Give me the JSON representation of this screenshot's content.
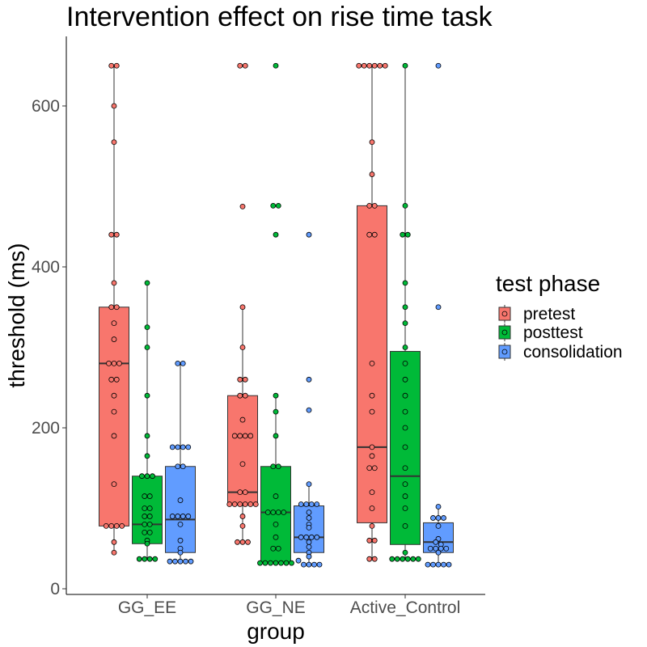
{
  "chart_data": {
    "type": "boxplot",
    "title": "Intervention effect on rise time task",
    "xlabel": "group",
    "ylabel": "threshold (ms)",
    "ylim": [
      -5,
      685
    ],
    "yticks": [
      0,
      200,
      400,
      600
    ],
    "categories": [
      "GG_EE",
      "GG_NE",
      "Active_Control"
    ],
    "grid": false,
    "legend": {
      "title": "test phase",
      "position": "right",
      "entries": [
        "pretest",
        "posttest",
        "consolidation"
      ]
    },
    "series": [
      {
        "name": "pretest",
        "color": "#F8766D",
        "boxes": [
          {
            "q1": 78,
            "median": 280,
            "q3": 350,
            "whisker_low": 45,
            "whisker_high": 650,
            "points": [
              650,
              650,
              600,
              555,
              440,
              440,
              380,
              350,
              350,
              330,
              310,
              280,
              280,
              280,
              260,
              260,
              240,
              220,
              190,
              130,
              78,
              78,
              78,
              78,
              58,
              45
            ]
          },
          {
            "q1": 105,
            "median": 120,
            "q3": 240,
            "whisker_low": 58,
            "whisker_high": 350,
            "points": [
              650,
              650,
              475,
              350,
              300,
              260,
              260,
              240,
              240,
              210,
              190,
              190,
              190,
              190,
              155,
              120,
              120,
              105,
              105,
              105,
              105,
              105,
              105,
              90,
              78,
              58,
              58,
              58
            ]
          },
          {
            "q1": 82,
            "median": 176,
            "q3": 476,
            "whisker_low": 37,
            "whisker_high": 650,
            "points": [
              650,
              650,
              650,
              650,
              650,
              650,
              555,
              515,
              476,
              476,
              440,
              440,
              280,
              240,
              220,
              176,
              165,
              150,
              150,
              120,
              100,
              78,
              60,
              60,
              37,
              37
            ]
          }
        ]
      },
      {
        "name": "posttest",
        "color": "#00BA38",
        "boxes": [
          {
            "q1": 56,
            "median": 80,
            "q3": 140,
            "whisker_low": 37,
            "whisker_high": 380,
            "points": [
              380,
              325,
              300,
              240,
              190,
              165,
              140,
              140,
              140,
              115,
              115,
              100,
              100,
              90,
              90,
              80,
              80,
              70,
              70,
              60,
              56,
              37,
              37,
              37,
              37
            ]
          },
          {
            "q1": 32,
            "median": 95,
            "q3": 152,
            "whisker_low": 32,
            "whisker_high": 240,
            "points": [
              650,
              476,
              476,
              440,
              240,
              220,
              190,
              152,
              152,
              115,
              95,
              95,
              95,
              95,
              80,
              64,
              50,
              50,
              32,
              32,
              32,
              32,
              32,
              32,
              32
            ]
          },
          {
            "q1": 55,
            "median": 140,
            "q3": 295,
            "whisker_low": 37,
            "whisker_high": 650,
            "points": [
              650,
              476,
              440,
              440,
              380,
              350,
              330,
              300,
              280,
              260,
              240,
              220,
              200,
              176,
              150,
              130,
              115,
              100,
              78,
              45,
              37,
              37,
              37,
              37,
              37,
              37
            ]
          }
        ]
      },
      {
        "name": "consolidation",
        "color": "#619CFF",
        "boxes": [
          {
            "q1": 45,
            "median": 86,
            "q3": 152,
            "whisker_low": 34,
            "whisker_high": 280,
            "points": [
              280,
              280,
              176,
              176,
              176,
              176,
              152,
              152,
              110,
              90,
              90,
              90,
              90,
              80,
              60,
              50,
              45,
              34,
              34,
              34,
              34,
              34
            ]
          },
          {
            "q1": 45,
            "median": 64,
            "q3": 103,
            "whisker_low": 30,
            "whisker_high": 130,
            "points": [
              440,
              260,
              222,
              130,
              105,
              105,
              105,
              105,
              95,
              88,
              80,
              76,
              64,
              64,
              64,
              64,
              58,
              52,
              45,
              40,
              35,
              30,
              30,
              30,
              30
            ]
          },
          {
            "q1": 45,
            "median": 58,
            "q3": 82,
            "whisker_low": 30,
            "whisker_high": 102,
            "points": [
              650,
              350,
              102,
              88,
              88,
              88,
              78,
              62,
              58,
              55,
              50,
              50,
              50,
              50,
              45,
              30,
              30,
              30,
              30,
              30
            ]
          }
        ]
      }
    ]
  }
}
